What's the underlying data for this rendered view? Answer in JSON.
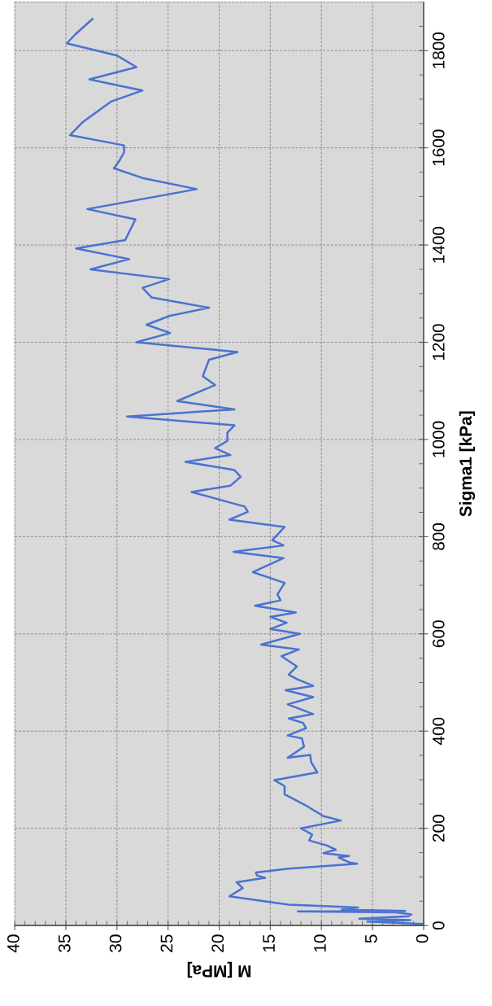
{
  "chart_data": {
    "type": "line",
    "xlabel": "M [MPa]",
    "ylabel": "Sigma1 [kPa]",
    "x": [
      0,
      5.5,
      1.3,
      6.3,
      1.5,
      1.2,
      2.7,
      12.3,
      1.8,
      8.0,
      6.4,
      13.2,
      19.0,
      17.7,
      18.3,
      15.5,
      16.3,
      16.4,
      13.2,
      6.5,
      7.3,
      8.3,
      7.3,
      9.8,
      8.6,
      9.5,
      11.2,
      10.9,
      12.0,
      8.1,
      9.8,
      11.6,
      13.6,
      13.6,
      14.6,
      10.4,
      11.0,
      11.1,
      13.3,
      11.7,
      11.9,
      13.3,
      11.5,
      11.8,
      13.2,
      10.8,
      13.3,
      10.8,
      13.5,
      10.8,
      12.4,
      13.2,
      12.4,
      13.9,
      12.2,
      15.9,
      12.1,
      15.0,
      13.4,
      15.0,
      12.5,
      16.5,
      14.0,
      14.3,
      13.6,
      16.7,
      13.7,
      18.6,
      13.7,
      14.8,
      13.6,
      19.0,
      17.2,
      17.5,
      22.7,
      18.9,
      17.9,
      18.5,
      23.3,
      18.9,
      20.4,
      19.2,
      19.2,
      18.5,
      29.0,
      18.5,
      24.1,
      20.4,
      21.6,
      21.0,
      18.2,
      28.1,
      24.8,
      27.1,
      24.9,
      21.0,
      26.6,
      27.5,
      24.9,
      32.6,
      28.8,
      34.0,
      29.2,
      28.4,
      28.2,
      32.9,
      22.2,
      27.5,
      30.3,
      29.8,
      29.3,
      29.3,
      34.6,
      33.4,
      30.6,
      27.5,
      32.7,
      28.1,
      30.0,
      34.9,
      34.1,
      32.4
    ],
    "values": [
      3,
      8,
      11,
      14,
      19,
      23,
      27,
      29,
      30,
      33,
      37,
      43,
      60,
      77,
      89,
      98,
      103,
      109,
      117,
      127,
      130,
      140,
      143,
      149,
      156,
      165,
      175,
      187,
      200,
      216,
      225,
      248,
      270,
      287,
      299,
      315,
      336,
      351,
      345,
      368,
      385,
      391,
      406,
      417,
      426,
      435,
      455,
      470,
      484,
      493,
      507,
      516,
      533,
      554,
      568,
      578,
      600,
      610,
      623,
      635,
      644,
      658,
      669,
      681,
      705,
      727,
      756,
      769,
      782,
      793,
      820,
      835,
      851,
      862,
      892,
      905,
      923,
      937,
      954,
      968,
      982,
      997,
      1014,
      1029,
      1047,
      1062,
      1079,
      1112,
      1130,
      1164,
      1180,
      1200,
      1219,
      1236,
      1254,
      1271,
      1292,
      1312,
      1330,
      1350,
      1371,
      1393,
      1410,
      1444,
      1453,
      1474,
      1515,
      1538,
      1558,
      1572,
      1591,
      1605,
      1626,
      1652,
      1695,
      1718,
      1741,
      1766,
      1790,
      1815,
      1833,
      1865
    ],
    "color": "#4a72d0",
    "xlim": [
      40,
      0
    ],
    "xticks": [
      0,
      5,
      10,
      15,
      20,
      25,
      30,
      35,
      40
    ],
    "ylim": [
      0,
      1900
    ],
    "yticks": [
      0,
      200,
      400,
      600,
      800,
      1000,
      1200,
      1400,
      1600,
      1800
    ],
    "grid": true,
    "marker": "none",
    "line_style": "solid",
    "legend": false
  }
}
